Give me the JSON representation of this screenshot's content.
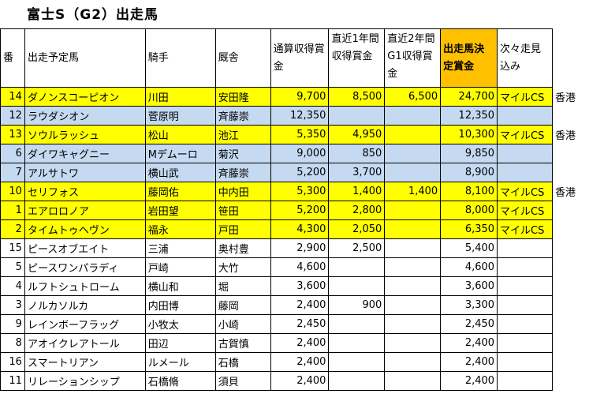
{
  "title": "富士S（G2）出走馬",
  "headers": {
    "no": "番",
    "horse": "出走予定馬",
    "jockey": "騎手",
    "stable": "厩舎",
    "total": "通算収得賞金",
    "recent1": "直近1年間収得賞金",
    "recent2g1": "直近2年間G1収得賞金",
    "decided": "出走馬決定賞金",
    "next": "次々走見込み"
  },
  "colors": {
    "highlight": "#ffff00",
    "blue_row": "#c5d9f1",
    "header_accent": "#ffc000"
  },
  "rows": [
    {
      "no": "14",
      "horse": "ダノンスコーピオン",
      "jockey": "川田",
      "stable": "安田隆",
      "total": "9,700",
      "recent1": "8,500",
      "recent2g1": "6,500",
      "decided": "24,700",
      "next": "マイルCS",
      "extra": "香港",
      "color": "yellow"
    },
    {
      "no": "12",
      "horse": "ラウダシオン",
      "jockey": "菅原明",
      "stable": "斉藤崇",
      "total": "12,350",
      "recent1": "",
      "recent2g1": "",
      "decided": "12,350",
      "next": "",
      "extra": "",
      "color": "blue"
    },
    {
      "no": "13",
      "horse": "ソウルラッシュ",
      "jockey": "松山",
      "stable": "池江",
      "total": "5,350",
      "recent1": "4,950",
      "recent2g1": "",
      "decided": "10,300",
      "next": "マイルCS",
      "extra": "香港",
      "color": "yellow"
    },
    {
      "no": "6",
      "horse": "ダイワキャグニー",
      "jockey": "Mデムーロ",
      "stable": "菊沢",
      "total": "9,000",
      "recent1": "850",
      "recent2g1": "",
      "decided": "9,850",
      "next": "",
      "extra": "",
      "color": "blue"
    },
    {
      "no": "7",
      "horse": "アルサトワ",
      "jockey": "横山武",
      "stable": "斉藤崇",
      "total": "5,200",
      "recent1": "3,700",
      "recent2g1": "",
      "decided": "8,900",
      "next": "",
      "extra": "",
      "color": "blue"
    },
    {
      "no": "10",
      "horse": "セリフォス",
      "jockey": "藤岡佑",
      "stable": "中内田",
      "total": "5,300",
      "recent1": "1,400",
      "recent2g1": "1,400",
      "decided": "8,100",
      "next": "マイルCS",
      "extra": "香港",
      "color": "yellow"
    },
    {
      "no": "1",
      "horse": "エアロロノア",
      "jockey": "岩田望",
      "stable": "笹田",
      "total": "5,200",
      "recent1": "2,800",
      "recent2g1": "",
      "decided": "8,000",
      "next": "マイルCS",
      "extra": "",
      "color": "yellow"
    },
    {
      "no": "2",
      "horse": "タイムトゥヘヴン",
      "jockey": "福永",
      "stable": "戸田",
      "total": "4,300",
      "recent1": "2,050",
      "recent2g1": "",
      "decided": "6,350",
      "next": "マイルCS",
      "extra": "",
      "color": "yellow"
    },
    {
      "no": "15",
      "horse": "ピースオブエイト",
      "jockey": "三浦",
      "stable": "奥村豊",
      "total": "2,900",
      "recent1": "2,500",
      "recent2g1": "",
      "decided": "5,400",
      "next": "",
      "extra": "",
      "color": ""
    },
    {
      "no": "5",
      "horse": "ピースワンパラディ",
      "jockey": "戸崎",
      "stable": "大竹",
      "total": "4,600",
      "recent1": "",
      "recent2g1": "",
      "decided": "4,600",
      "next": "",
      "extra": "",
      "color": ""
    },
    {
      "no": "4",
      "horse": "ルフトシュトローム",
      "jockey": "横山和",
      "stable": "堀",
      "total": "3,600",
      "recent1": "",
      "recent2g1": "",
      "decided": "3,600",
      "next": "",
      "extra": "",
      "color": ""
    },
    {
      "no": "3",
      "horse": "ノルカソルカ",
      "jockey": "内田博",
      "stable": "藤岡",
      "total": "2,400",
      "recent1": "900",
      "recent2g1": "",
      "decided": "3,300",
      "next": "",
      "extra": "",
      "color": ""
    },
    {
      "no": "9",
      "horse": "レインボーフラッグ",
      "jockey": "小牧太",
      "stable": "小崎",
      "total": "2,450",
      "recent1": "",
      "recent2g1": "",
      "decided": "2,450",
      "next": "",
      "extra": "",
      "color": ""
    },
    {
      "no": "8",
      "horse": "アオイクレアトール",
      "jockey": "田辺",
      "stable": "古賀慎",
      "total": "2,400",
      "recent1": "",
      "recent2g1": "",
      "decided": "2,400",
      "next": "",
      "extra": "",
      "color": ""
    },
    {
      "no": "16",
      "horse": "スマートリアン",
      "jockey": "ルメール",
      "stable": "石橋",
      "total": "2,400",
      "recent1": "",
      "recent2g1": "",
      "decided": "2,400",
      "next": "",
      "extra": "",
      "color": ""
    },
    {
      "no": "11",
      "horse": "リレーションシップ",
      "jockey": "石橋脩",
      "stable": "須貝",
      "total": "2,400",
      "recent1": "",
      "recent2g1": "",
      "decided": "2,400",
      "next": "",
      "extra": "",
      "color": ""
    }
  ]
}
